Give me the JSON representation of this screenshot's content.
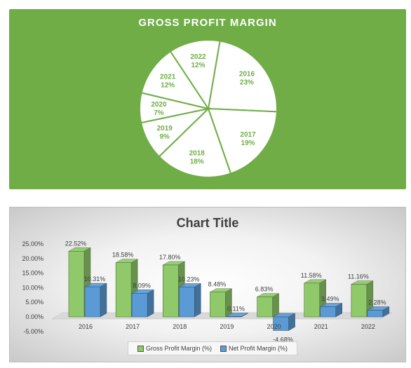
{
  "chart_data": [
    {
      "type": "pie",
      "title": "GROSS PROFIT MARGIN",
      "categories": [
        "2016",
        "2017",
        "2018",
        "2019",
        "2020",
        "2021",
        "2022"
      ],
      "values": [
        23,
        19,
        18,
        9,
        7,
        12,
        12
      ],
      "labels": [
        "23%",
        "19%",
        "18%",
        "9%",
        "7%",
        "12%",
        "12%"
      ],
      "colors": {
        "background": "#70ad47",
        "slice": "#ffffff",
        "label": "#70ad47"
      }
    },
    {
      "type": "bar",
      "title": "Chart Title",
      "categories": [
        "2016",
        "2017",
        "2018",
        "2019",
        "2020",
        "2021",
        "2022"
      ],
      "yticks": [
        "25.00%",
        "20.00%",
        "15.00%",
        "10.00%",
        "5.00%",
        "0.00%",
        "-5.00%"
      ],
      "ylim": [
        -5,
        25
      ],
      "series": [
        {
          "name": "Gross Profit Margin (%)",
          "values": [
            22.52,
            18.58,
            17.8,
            8.48,
            6.83,
            11.58,
            11.16
          ],
          "labels": [
            "22.52%",
            "18.58%",
            "17.80%",
            "8.48%",
            "6.83%",
            "11.58%",
            "11.16%"
          ],
          "color": "#8fc96a"
        },
        {
          "name": "Net Profit Margin (%)",
          "values": [
            10.31,
            8.09,
            10.23,
            0.11,
            -4.68,
            3.49,
            2.28
          ],
          "labels": [
            "10.31%",
            "8.09%",
            "10.23%",
            "0.11%",
            "-4.68%",
            "3.49%",
            "2.28%"
          ],
          "color": "#5b9bd5"
        }
      ],
      "legend": "bottom"
    }
  ]
}
